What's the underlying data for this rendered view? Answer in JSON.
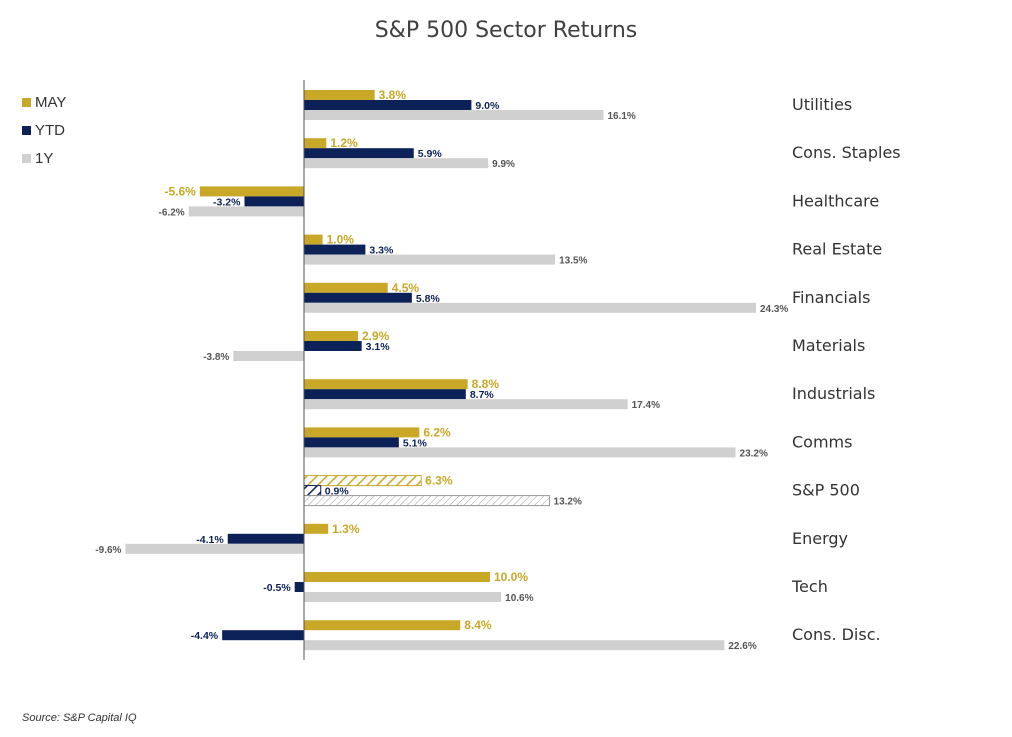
{
  "chart_data": {
    "type": "bar",
    "orientation": "horizontal",
    "title": "S&P 500 Sector Returns",
    "categories": [
      "Utilities",
      "Cons. Staples",
      "Healthcare",
      "Real Estate",
      "Financials",
      "Materials",
      "Industrials",
      "Comms",
      "S&P 500",
      "Energy",
      "Tech",
      "Cons. Disc."
    ],
    "series": [
      {
        "name": "MAY",
        "color": "#C9A828",
        "values": [
          3.8,
          1.2,
          -5.6,
          1.0,
          4.5,
          2.9,
          8.8,
          6.2,
          6.3,
          1.3,
          10.0,
          8.4
        ],
        "labels": [
          "3.8%",
          "1.2%",
          "-5.6%",
          "1.0%",
          "4.5%",
          "2.9%",
          "8.8%",
          "6.2%",
          "6.3%",
          "1.3%",
          "10.0%",
          "8.4%"
        ]
      },
      {
        "name": "YTD",
        "color": "#0C2157",
        "values": [
          9.0,
          5.9,
          -3.2,
          3.3,
          5.8,
          3.1,
          8.7,
          5.1,
          0.9,
          -4.1,
          -0.5,
          -4.4
        ],
        "labels": [
          "9.0%",
          "5.9%",
          "-3.2%",
          "3.3%",
          "5.8%",
          "3.1%",
          "8.7%",
          "5.1%",
          "0.9%",
          "-4.1%",
          "-0.5%",
          "-4.4%"
        ]
      },
      {
        "name": "1Y",
        "color": "#D0D0D0",
        "values": [
          16.1,
          9.9,
          -6.2,
          13.5,
          24.3,
          -3.8,
          17.4,
          23.2,
          13.2,
          -9.6,
          10.6,
          22.6
        ],
        "labels": [
          "16.1%",
          "9.9%",
          "-6.2%",
          "13.5%",
          "24.3%",
          "-3.8%",
          "17.4%",
          "23.2%",
          "13.2%",
          "-9.6%",
          "10.6%",
          "22.6%"
        ]
      }
    ],
    "highlight_category": "S&P 500",
    "highlight_style": "hatched",
    "legend_position": "top-left",
    "grid": false,
    "xlabel": "",
    "ylabel": ""
  },
  "source": "Source: S&P Capital IQ"
}
